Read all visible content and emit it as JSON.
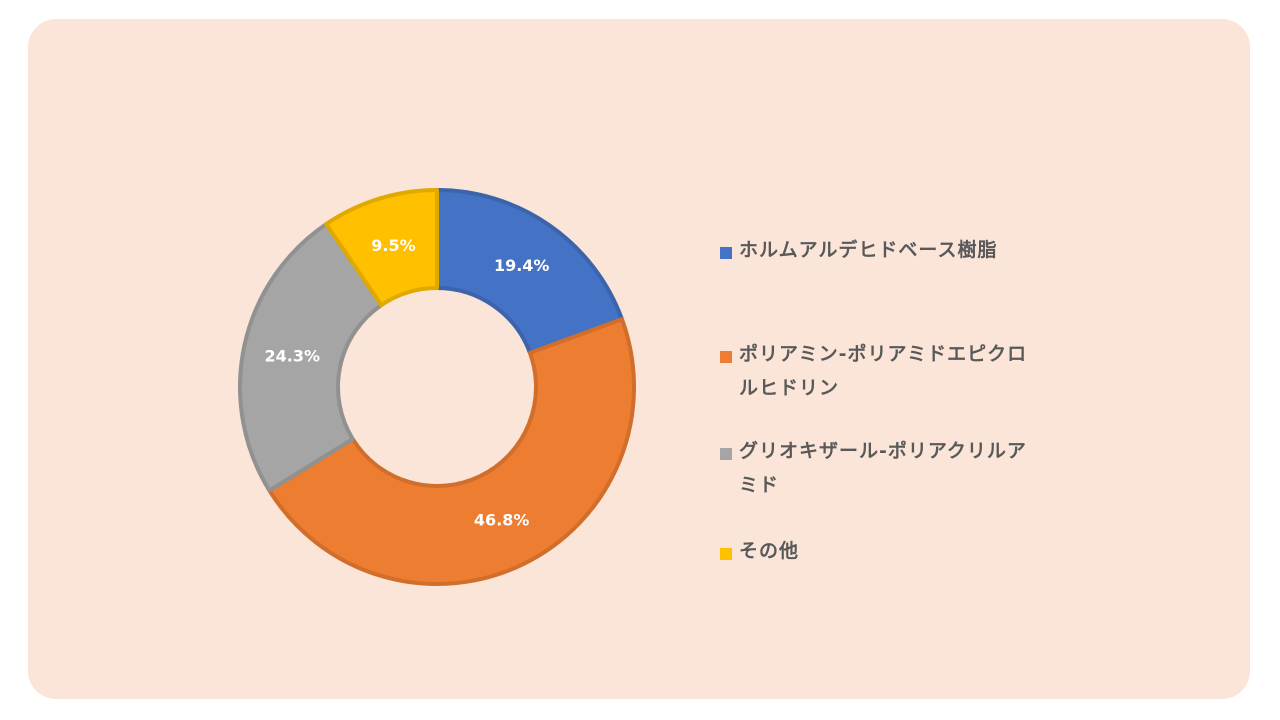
{
  "chart_data": {
    "type": "pie",
    "subtype": "donut",
    "categories": [
      "ホルムアルデヒドベース樹脂",
      "ポリアミン-ポリアミドエピクロルヒドリン",
      "グリオキザール-ポリアクリルアミド",
      "その他"
    ],
    "values": [
      19.4,
      46.8,
      24.3,
      9.5
    ],
    "labels": [
      "19.4%",
      "46.8%",
      "24.3%",
      "9.5%"
    ],
    "colors": [
      "#4472c4",
      "#ed7d31",
      "#a5a5a5",
      "#ffc000"
    ],
    "legend": "right",
    "title": ""
  },
  "legend": {
    "items": [
      {
        "label": "ホルムアルデヒドベース樹脂",
        "color": "#4472c4"
      },
      {
        "label": "ポリアミン-ポリアミドエピクロルヒドリン",
        "color": "#ed7d31"
      },
      {
        "label": "グリオキザール-ポリアクリルアミド",
        "color": "#a5a5a5"
      },
      {
        "label": "その他",
        "color": "#ffc000"
      }
    ]
  }
}
